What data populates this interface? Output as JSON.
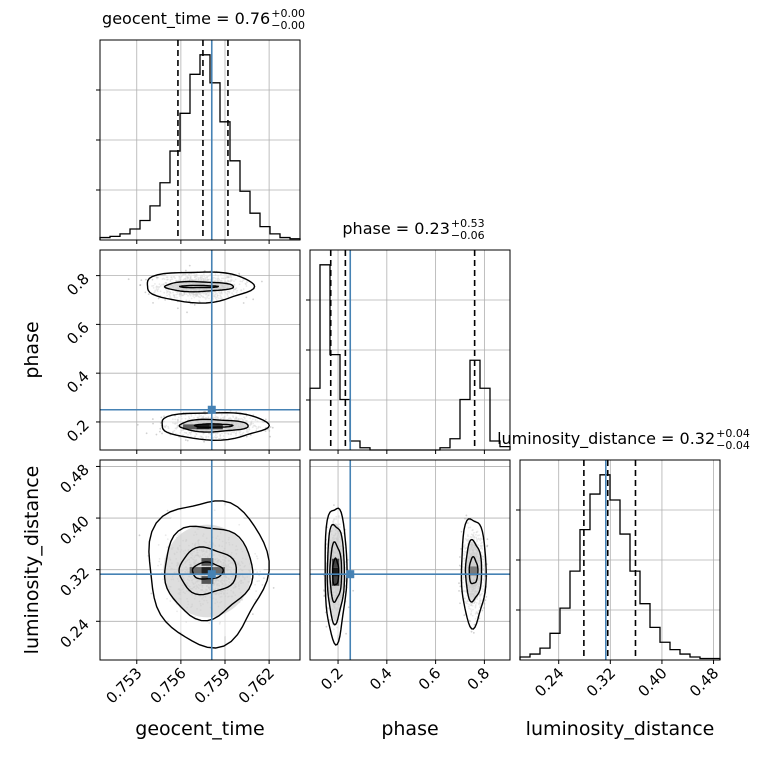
{
  "chart_data": {
    "type": "corner",
    "parameters": [
      {
        "name": "geocent_time",
        "axis_label": "geocent_time",
        "title": "geocent_time = 0.76",
        "title_sup": "+0.00",
        "title_sub": "−0.00",
        "range": [
          0.7505,
          0.7641
        ],
        "ticks": [
          0.753,
          0.756,
          0.759,
          0.762
        ],
        "tick_labels": [
          "0.753",
          "0.756",
          "0.759",
          "0.762"
        ],
        "injected": 0.7581,
        "quantiles": [
          0.7558,
          0.7575,
          0.7592
        ]
      },
      {
        "name": "phase",
        "axis_label": "phase",
        "title": "phase = 0.23",
        "title_sup": "+0.53",
        "title_sub": "−0.06",
        "range": [
          0.085,
          0.905
        ],
        "ticks": [
          0.2,
          0.4,
          0.6,
          0.8
        ],
        "tick_labels": [
          "0.2",
          "0.4",
          "0.6",
          "0.8"
        ],
        "injected": 0.25,
        "quantiles": [
          0.17,
          0.23,
          0.76
        ]
      },
      {
        "name": "luminosity_distance",
        "axis_label": "luminosity_distance",
        "title": "luminosity_distance = 0.32",
        "title_sup": "+0.04",
        "title_sub": "−0.04",
        "range": [
          0.18,
          0.49
        ],
        "ticks": [
          0.24,
          0.32,
          0.4,
          0.48
        ],
        "tick_labels": [
          "0.24",
          "0.32",
          "0.40",
          "0.48"
        ],
        "injected": 0.313,
        "quantiles": [
          0.279,
          0.316,
          0.359
        ]
      }
    ],
    "histograms": [
      {
        "parameter": "geocent_time",
        "edges": [
          0.7505,
          0.75118,
          0.75186,
          0.75254,
          0.75322,
          0.7539,
          0.75458,
          0.75526,
          0.75594,
          0.75662,
          0.7573,
          0.75798,
          0.75866,
          0.75934,
          0.76002,
          0.7607,
          0.76138,
          0.76206,
          0.76274,
          0.76342,
          0.7641
        ],
        "counts": [
          2,
          3,
          5,
          9,
          16,
          28,
          47,
          73,
          104,
          136,
          152,
          129,
          97,
          65,
          40,
          22,
          11,
          5,
          2,
          1
        ]
      },
      {
        "parameter": "phase",
        "edges": [
          0.085,
          0.126,
          0.167,
          0.208,
          0.249,
          0.29,
          0.331,
          0.372,
          0.413,
          0.454,
          0.495,
          0.536,
          0.577,
          0.618,
          0.659,
          0.7,
          0.741,
          0.782,
          0.823,
          0.864,
          0.905
        ],
        "counts": [
          55,
          165,
          85,
          45,
          8,
          2,
          0,
          0,
          0,
          0,
          0,
          0,
          0,
          2,
          10,
          45,
          80,
          55,
          8,
          3
        ]
      },
      {
        "parameter": "luminosity_distance",
        "edges": [
          0.18,
          0.1955,
          0.211,
          0.2265,
          0.242,
          0.2575,
          0.273,
          0.2885,
          0.304,
          0.3195,
          0.335,
          0.3505,
          0.366,
          0.3815,
          0.397,
          0.4125,
          0.428,
          0.4435,
          0.459,
          0.4745,
          0.49
        ],
        "counts": [
          2,
          4,
          8,
          18,
          35,
          60,
          88,
          112,
          125,
          108,
          85,
          60,
          38,
          22,
          12,
          7,
          4,
          2,
          1,
          1
        ]
      }
    ],
    "pairs": [
      {
        "x": "geocent_time",
        "y": "phase",
        "modes": [
          {
            "mx": 0.7572,
            "my": 0.755,
            "sx": 0.0013,
            "sy": 0.025,
            "levels": [
              [
                1.0,
                0.18
              ],
              [
                1.8,
                0.45
              ],
              [
                2.8,
                0.9
              ]
            ]
          },
          {
            "mx": 0.7582,
            "my": 0.185,
            "sx": 0.0013,
            "sy": 0.02,
            "levels": [
              [
                1.0,
                0.35
              ],
              [
                1.8,
                0.7
              ],
              [
                2.8,
                1.0
              ]
            ]
          }
        ],
        "bins": [
          {
            "x": 0.7575,
            "y": 0.18,
            "w": 0.0009,
            "h": 0.02,
            "shade": "#1a1a1a"
          },
          {
            "x": 0.7584,
            "y": 0.18,
            "w": 0.0009,
            "h": 0.02,
            "shade": "#3a3a3a"
          },
          {
            "x": 0.7566,
            "y": 0.18,
            "w": 0.0009,
            "h": 0.02,
            "shade": "#5a5a5a"
          }
        ]
      },
      {
        "x": "geocent_time",
        "y": "luminosity_distance",
        "modes": [
          {
            "mx": 0.7578,
            "my": 0.318,
            "sx": 0.0013,
            "sy": 0.025,
            "levels": [
              [
                0.8,
                0.65
              ],
              [
                1.5,
                0.95
              ],
              [
                2.3,
                1.25
              ],
              [
                3.1,
                1.45
              ]
            ]
          }
        ],
        "bins": [
          {
            "x": 0.7578,
            "y": 0.318,
            "w": 0.0008,
            "h": 0.012,
            "shade": "#222222"
          },
          {
            "x": 0.7578,
            "y": 0.332,
            "w": 0.0008,
            "h": 0.012,
            "shade": "#555555"
          },
          {
            "x": 0.7578,
            "y": 0.304,
            "w": 0.0008,
            "h": 0.012,
            "shade": "#555555"
          },
          {
            "x": 0.757,
            "y": 0.318,
            "w": 0.0008,
            "h": 0.012,
            "shade": "#6a6a6a"
          },
          {
            "x": 0.7586,
            "y": 0.318,
            "w": 0.0008,
            "h": 0.012,
            "shade": "#6a6a6a"
          }
        ]
      },
      {
        "x": "phase",
        "y": "luminosity_distance",
        "modes": [
          {
            "mx": 0.19,
            "my": 0.316,
            "sx": 0.016,
            "sy": 0.03,
            "levels": [
              [
                0.8,
                0.85
              ],
              [
                1.5,
                1.0
              ],
              [
                2.2,
                1.15
              ],
              [
                2.8,
                1.25
              ]
            ]
          },
          {
            "mx": 0.755,
            "my": 0.318,
            "sx": 0.022,
            "sy": 0.027,
            "levels": [
              [
                0.8,
                0.95
              ],
              [
                1.5,
                1.15
              ],
              [
                2.3,
                1.35
              ]
            ]
          }
        ],
        "bins": [
          {
            "x": 0.19,
            "y": 0.316,
            "w": 0.03,
            "h": 0.014,
            "shade": "#1a1a1a"
          },
          {
            "x": 0.19,
            "y": 0.302,
            "w": 0.03,
            "h": 0.014,
            "shade": "#444444"
          },
          {
            "x": 0.19,
            "y": 0.33,
            "w": 0.03,
            "h": 0.014,
            "shade": "#444444"
          },
          {
            "x": 0.755,
            "y": 0.318,
            "w": 0.03,
            "h": 0.014,
            "shade": "#7a7a7a"
          }
        ]
      }
    ],
    "grid": true
  },
  "colors": {
    "injection_line": "#4682b4",
    "histogram": "#000000",
    "contour": "#000000",
    "samples": "#999999",
    "grid": "#b0b0b0"
  }
}
